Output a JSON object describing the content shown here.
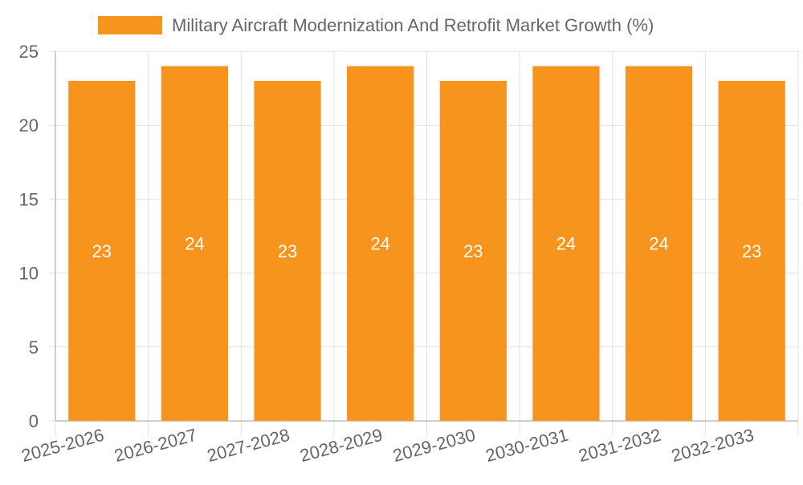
{
  "chart_data": {
    "type": "bar",
    "categories": [
      "2025-2026",
      "2026-2027",
      "2027-2028",
      "2028-2029",
      "2029-2030",
      "2030-2031",
      "2031-2032",
      "2032-2033"
    ],
    "series": [
      {
        "name": "Military Aircraft Modernization And Retrofit Market Growth (%)",
        "values": [
          23,
          24,
          23,
          24,
          23,
          24,
          24,
          23
        ],
        "color": "#f7941d"
      }
    ],
    "y_ticks": [
      0,
      5,
      10,
      15,
      20,
      25
    ],
    "ylim": [
      0,
      25
    ],
    "grid": true,
    "legend_position": "top-center",
    "data_labels": "inside-center",
    "x_tick_rotation": "angled",
    "colors": {
      "bar": "#f7941d",
      "grid": "#e2e2e2",
      "axis": "#bdbdbd",
      "tick_text": "#666666",
      "legend_text": "#666666",
      "data_label": "#ffffff"
    }
  }
}
